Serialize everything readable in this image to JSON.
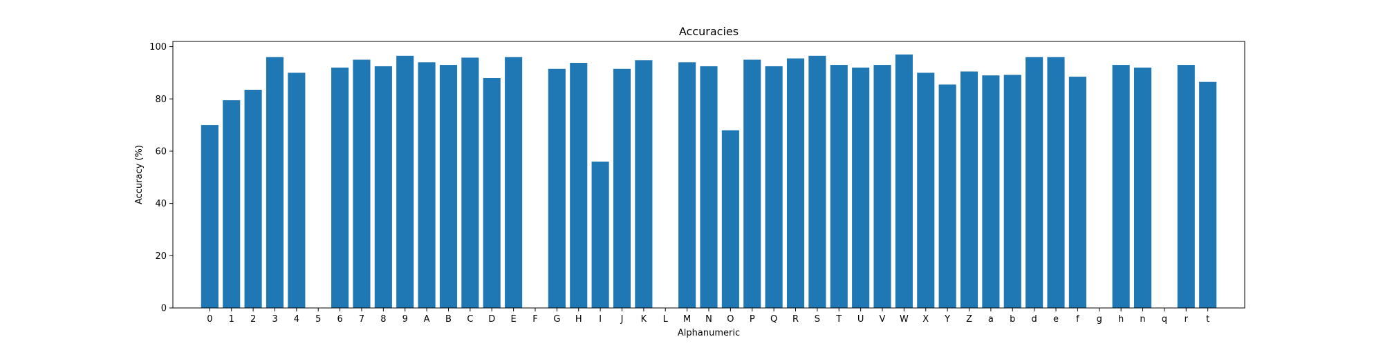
{
  "chart_data": {
    "type": "bar",
    "title": "Accuracies",
    "xlabel": "Alphanumeric",
    "ylabel": "Accuracy (%)",
    "ylim": [
      0,
      102
    ],
    "yticks": [
      0,
      20,
      40,
      60,
      80,
      100
    ],
    "grid": false,
    "bar_color": "#1f77b4",
    "categories": [
      "0",
      "1",
      "2",
      "3",
      "4",
      "5",
      "6",
      "7",
      "8",
      "9",
      "A",
      "B",
      "C",
      "D",
      "E",
      "F",
      "G",
      "H",
      "I",
      "J",
      "K",
      "L",
      "M",
      "N",
      "O",
      "P",
      "Q",
      "R",
      "S",
      "T",
      "U",
      "V",
      "W",
      "X",
      "Y",
      "Z",
      "a",
      "b",
      "d",
      "e",
      "f",
      "g",
      "h",
      "n",
      "q",
      "r",
      "t"
    ],
    "values": [
      70,
      79.5,
      83.5,
      96,
      90,
      0,
      92,
      95,
      92.5,
      96.5,
      94,
      93,
      95.8,
      88,
      96,
      0,
      91.5,
      93.8,
      56,
      91.5,
      94.8,
      0,
      94,
      92.5,
      68,
      95,
      92.5,
      95.5,
      96.5,
      93,
      92,
      93,
      97,
      90,
      85.5,
      90.5,
      89,
      89.2,
      96,
      96,
      88.5,
      0,
      93,
      92,
      0,
      93,
      86.5
    ]
  }
}
